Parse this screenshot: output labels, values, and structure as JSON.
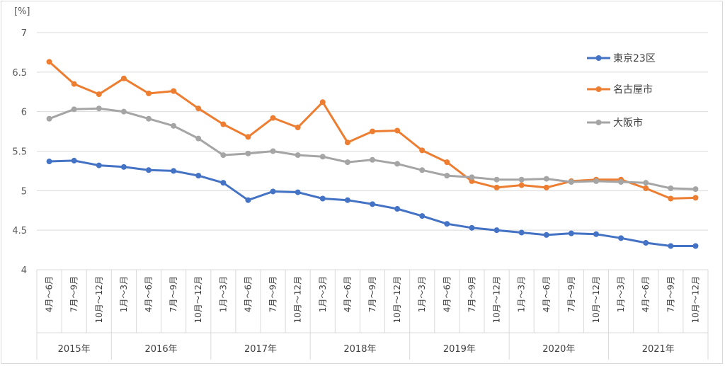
{
  "chart_data": {
    "type": "line",
    "ylabel": "[%]",
    "ylim": [
      4,
      7
    ],
    "yticks": [
      "4",
      "4.5",
      "5",
      "5.5",
      "6",
      "6.5",
      "7"
    ],
    "grid": true,
    "legend_position": "right",
    "categories": [
      "4月～6月",
      "7月～9月",
      "10月～12月",
      "1月～3月",
      "4月～6月",
      "7月～9月",
      "10月～12月",
      "1月～3月",
      "4月～6月",
      "7月～9月",
      "10月～12月",
      "1月～3月",
      "4月～6月",
      "7月～9月",
      "10月～12月",
      "1月～3月",
      "4月～6月",
      "7月～9月",
      "10月～12月",
      "1月～3月",
      "4月～6月",
      "7月～9月",
      "10月～12月",
      "1月～3月",
      "4月～6月",
      "7月～9月",
      "10月～12月"
    ],
    "years": [
      {
        "label": "2015年",
        "count": 3
      },
      {
        "label": "2016年",
        "count": 4
      },
      {
        "label": "2017年",
        "count": 4
      },
      {
        "label": "2018年",
        "count": 4
      },
      {
        "label": "2019年",
        "count": 4
      },
      {
        "label": "2020年",
        "count": 4
      },
      {
        "label": "2021年",
        "count": 4
      }
    ],
    "series": [
      {
        "name": "東京23区",
        "color": "#4472c4",
        "values": [
          5.37,
          5.38,
          5.32,
          5.3,
          5.26,
          5.25,
          5.19,
          5.1,
          4.88,
          4.99,
          4.98,
          4.9,
          4.88,
          4.83,
          4.77,
          4.68,
          4.58,
          4.53,
          4.5,
          4.47,
          4.44,
          4.46,
          4.45,
          4.4,
          4.34,
          4.3,
          4.3
        ]
      },
      {
        "name": "名古屋市",
        "color": "#ed7d31",
        "values": [
          6.63,
          6.35,
          6.22,
          6.42,
          6.23,
          6.26,
          6.04,
          5.84,
          5.68,
          5.92,
          5.8,
          6.12,
          5.61,
          5.75,
          5.76,
          5.51,
          5.36,
          5.12,
          5.04,
          5.07,
          5.04,
          5.12,
          5.14,
          5.14,
          5.03,
          4.9,
          4.91
        ]
      },
      {
        "name": "大阪市",
        "color": "#a5a5a5",
        "values": [
          5.91,
          6.03,
          6.04,
          6.0,
          5.91,
          5.82,
          5.66,
          5.45,
          5.47,
          5.5,
          5.45,
          5.43,
          5.36,
          5.39,
          5.34,
          5.26,
          5.19,
          5.17,
          5.14,
          5.14,
          5.15,
          5.11,
          5.12,
          5.11,
          5.1,
          5.03,
          5.02
        ]
      }
    ]
  }
}
